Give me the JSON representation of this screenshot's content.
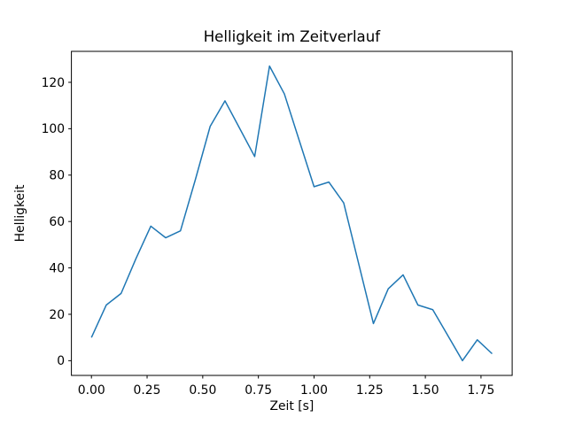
{
  "figure": {
    "background_color": "#ffffff",
    "text_color": "#000000"
  },
  "chart_data": {
    "type": "line",
    "title": "Helligkeit im Zeitverlauf",
    "xlabel": "Zeit [s]",
    "ylabel": "Helligkeit",
    "line_color": "#1f77b4",
    "grid": false,
    "legend": null,
    "x": [
      0.0,
      0.0667,
      0.1333,
      0.2,
      0.2667,
      0.3333,
      0.4,
      0.4667,
      0.5333,
      0.6,
      0.6667,
      0.7333,
      0.8,
      0.8667,
      0.9333,
      1.0,
      1.0667,
      1.1333,
      1.2,
      1.2667,
      1.3333,
      1.4,
      1.4667,
      1.5333,
      1.6,
      1.6667,
      1.7333,
      1.8
    ],
    "y": [
      10,
      24,
      29,
      44,
      58,
      53,
      56,
      78,
      101,
      112,
      100,
      88,
      127,
      115,
      95,
      75,
      77,
      68,
      42,
      16,
      31,
      37,
      24,
      22,
      11,
      0,
      9,
      3
    ],
    "xlim": [
      -0.09,
      1.89
    ],
    "ylim": [
      -6.35,
      133.35
    ],
    "xticks": [
      0.0,
      0.25,
      0.5,
      0.75,
      1.0,
      1.25,
      1.5,
      1.75
    ],
    "xtick_labels": [
      "0.00",
      "0.25",
      "0.50",
      "0.75",
      "1.00",
      "1.25",
      "1.50",
      "1.75"
    ],
    "yticks": [
      0,
      20,
      40,
      60,
      80,
      100,
      120
    ],
    "ytick_labels": [
      "0",
      "20",
      "40",
      "60",
      "80",
      "100",
      "120"
    ]
  }
}
